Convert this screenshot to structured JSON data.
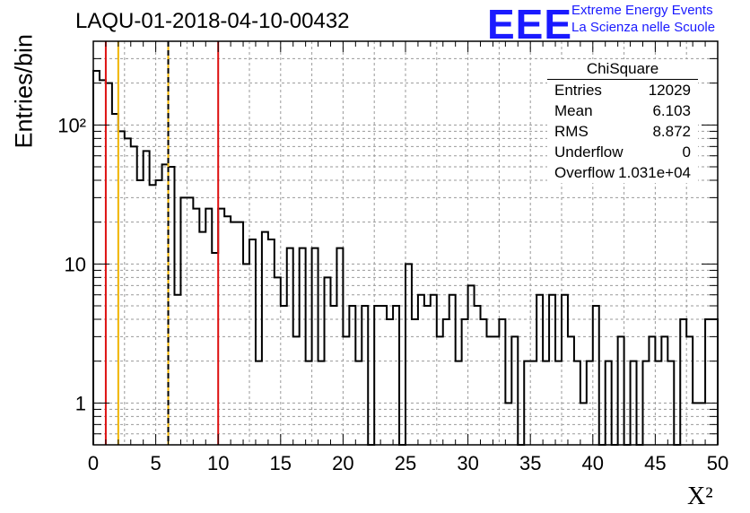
{
  "header": {
    "run_title": "LAQU-01-2018-04-10-00432"
  },
  "logo": {
    "letters": "EEE",
    "line1": "Extreme Energy Events",
    "line2": "La Scienza nelle Scuole",
    "color": "#1a1aff"
  },
  "chart_data": {
    "type": "bar",
    "title": "LAQU-01-2018-04-10-00432",
    "xlabel": "X²",
    "ylabel": "Entries/bin",
    "yscale": "log",
    "xlim": [
      0,
      50
    ],
    "ylim": [
      0.5,
      400
    ],
    "bin_width": 0.5,
    "grid": true,
    "x_ticks": [
      "0",
      "5",
      "10",
      "15",
      "20",
      "25",
      "30",
      "35",
      "40",
      "45",
      "50"
    ],
    "y_ticks": [
      {
        "value": 1,
        "label": "1"
      },
      {
        "value": 10,
        "label": "10"
      },
      {
        "value": 100,
        "label": "10²"
      }
    ],
    "values": [
      245,
      210,
      200,
      120,
      90,
      80,
      70,
      40,
      65,
      37,
      40,
      52,
      50,
      6,
      30,
      30,
      25,
      17,
      25,
      12,
      25,
      22,
      20,
      20,
      10,
      15,
      2,
      17,
      15,
      8,
      5,
      13,
      3,
      13,
      2,
      13,
      2,
      8,
      5,
      13,
      3,
      5,
      2,
      5,
      0.5,
      5,
      5,
      4,
      5,
      0.5,
      10,
      4,
      6,
      5,
      6,
      3,
      4,
      6,
      2,
      4,
      7,
      5,
      4,
      3,
      3,
      4,
      1,
      3,
      0.5,
      2,
      2,
      6,
      2,
      6,
      2,
      6,
      3,
      2,
      1,
      2,
      5,
      0.5,
      2,
      0.5,
      3,
      0.5,
      2,
      0.5,
      2,
      3,
      2,
      3,
      2,
      0.5,
      4,
      3,
      1,
      1,
      4,
      4
    ],
    "vertical_lines": [
      {
        "x": 1,
        "color": "#dd1111",
        "style": "solid"
      },
      {
        "x": 2,
        "color": "#f0b400",
        "style": "solid"
      },
      {
        "x": 6,
        "color": "#f0b400",
        "style": "solid"
      },
      {
        "x": 6,
        "color": "#000000",
        "style": "dashed"
      },
      {
        "x": 10,
        "color": "#dd1111",
        "style": "solid"
      }
    ]
  },
  "stats_box": {
    "title": "ChiSquare",
    "rows": [
      {
        "key": "Entries",
        "value": "12029"
      },
      {
        "key": "Mean",
        "value": "6.103"
      },
      {
        "key": "RMS",
        "value": "8.872"
      },
      {
        "key": "Underflow",
        "value": "0"
      },
      {
        "key": "Overflow",
        "value": "1.031e+04"
      }
    ]
  }
}
